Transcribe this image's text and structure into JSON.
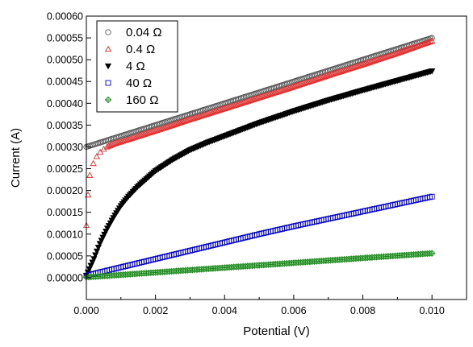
{
  "chart_data": {
    "type": "scatter",
    "title": "",
    "xlabel": "Potential (V)",
    "ylabel": "Current (A)",
    "xlim": [
      0,
      0.011
    ],
    "ylim": [
      -5e-05,
      0.0006
    ],
    "xticks": [
      0.0,
      0.002,
      0.004,
      0.006,
      0.008,
      0.01
    ],
    "xtick_labels": [
      "0.000",
      "0.002",
      "0.004",
      "0.006",
      "0.008",
      "0.010"
    ],
    "yticks": [
      0.0,
      5e-05,
      0.0001,
      0.00015,
      0.0002,
      0.00025,
      0.0003,
      0.00035,
      0.0004,
      0.00045,
      0.0005,
      0.00055,
      0.0006
    ],
    "ytick_labels": [
      "0.00000",
      "0.00005",
      "0.00010",
      "0.00015",
      "0.00020",
      "0.00025",
      "0.00030",
      "0.00035",
      "0.00040",
      "0.00045",
      "0.00050",
      "0.00055",
      "0.00060"
    ],
    "grid": false,
    "legend_position": "top-left",
    "series": [
      {
        "name": "0.04 Ω",
        "marker": "circle",
        "color": "#555555",
        "x": [
          0,
          0.001,
          0.002,
          0.003,
          0.004,
          0.005,
          0.006,
          0.007,
          0.008,
          0.009,
          0.01
        ],
        "y": [
          0.0003,
          0.000325,
          0.00035,
          0.000375,
          0.0004,
          0.000425,
          0.00045,
          0.000475,
          0.0005,
          0.000525,
          0.00055
        ]
      },
      {
        "name": "0.4 Ω",
        "marker": "triangle-up",
        "color": "#e03030",
        "x": [
          0,
          5e-05,
          0.0001,
          0.0002,
          0.0003,
          0.0004,
          0.0005,
          0.0006,
          0.0008,
          0.001,
          0.002,
          0.003,
          0.004,
          0.005,
          0.006,
          0.007,
          0.008,
          0.009,
          0.01
        ],
        "y": [
          0.00012,
          0.00019,
          0.000235,
          0.000262,
          0.000278,
          0.000288,
          0.000295,
          0.0003,
          0.000307,
          0.000312,
          0.000337,
          0.000363,
          0.000388,
          0.000413,
          0.000438,
          0.000464,
          0.000489,
          0.000515,
          0.000543
        ]
      },
      {
        "name": "4 Ω",
        "marker": "triangle-down",
        "color": "#000000",
        "x": [
          0,
          0.0002,
          0.0004,
          0.0006,
          0.0008,
          0.001,
          0.0012,
          0.0015,
          0.002,
          0.0025,
          0.003,
          0.0035,
          0.004,
          0.005,
          0.006,
          0.007,
          0.008,
          0.009,
          0.01
        ],
        "y": [
          5e-06,
          4e-05,
          8e-05,
          0.000112,
          0.00014,
          0.000165,
          0.000185,
          0.00021,
          0.000245,
          0.000271,
          0.000293,
          0.00031,
          0.000325,
          0.000355,
          0.000382,
          0.000407,
          0.00043,
          0.000452,
          0.000474
        ]
      },
      {
        "name": "40 Ω",
        "marker": "square",
        "color": "#0000cc",
        "x": [
          0,
          0.001,
          0.002,
          0.003,
          0.004,
          0.005,
          0.006,
          0.007,
          0.008,
          0.009,
          0.01
        ],
        "y": [
          5e-06,
          2.4e-05,
          4.3e-05,
          6.2e-05,
          8.1e-05,
          0.0001,
          0.000118,
          0.000135,
          0.000152,
          0.000169,
          0.000186
        ]
      },
      {
        "name": "160 Ω",
        "marker": "diamond-plus",
        "color": "#1a8a1a",
        "x": [
          0,
          0.001,
          0.002,
          0.003,
          0.004,
          0.005,
          0.006,
          0.007,
          0.008,
          0.009,
          0.01
        ],
        "y": [
          1e-06,
          6.5e-06,
          1.2e-05,
          1.75e-05,
          2.3e-05,
          2.85e-05,
          3.4e-05,
          3.95e-05,
          4.5e-05,
          5.05e-05,
          5.6e-05
        ]
      }
    ]
  }
}
